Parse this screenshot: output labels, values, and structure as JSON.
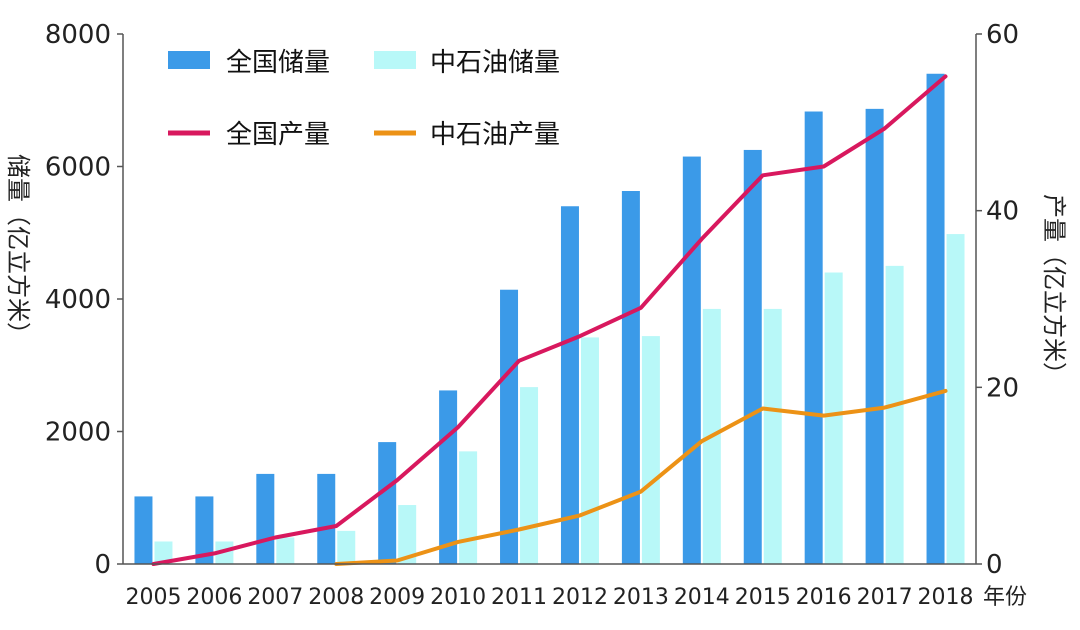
{
  "colors": {
    "national_reserve": "#3b9ae8",
    "cnpc_reserve": "#b8f8f8",
    "national_production": "#d8185e",
    "cnpc_production": "#ec9216",
    "axis": "#555555",
    "text": "#222222"
  },
  "chart_data": {
    "type": "bar",
    "categories": [
      "2005",
      "2006",
      "2007",
      "2008",
      "2009",
      "2010",
      "2011",
      "2012",
      "2013",
      "2014",
      "2015",
      "2016",
      "2017",
      "2018"
    ],
    "xlabel": "年份",
    "ylabel_left": "储量（亿立方米）",
    "ylabel_right": "产量（亿立方米）",
    "ylim_left": [
      0,
      8000
    ],
    "ylim_right": [
      0,
      60
    ],
    "yticks_left": [
      "0",
      "2000",
      "4000",
      "6000",
      "8000"
    ],
    "yticks_right": [
      "0",
      "20",
      "40",
      "60"
    ],
    "legend_position": "top-left",
    "grid": false,
    "series": [
      {
        "name": "全国储量",
        "type": "bar",
        "axis": "left",
        "values": [
          1020,
          1020,
          1360,
          1360,
          1840,
          2620,
          4140,
          5400,
          5630,
          6150,
          6250,
          6830,
          6870,
          7400
        ]
      },
      {
        "name": "中石油储量",
        "type": "bar",
        "axis": "left",
        "values": [
          340,
          340,
          400,
          500,
          890,
          1700,
          2670,
          3420,
          3440,
          3850,
          3850,
          4400,
          4500,
          4980
        ]
      },
      {
        "name": "全国产量",
        "type": "line",
        "axis": "right",
        "values": [
          0,
          1.2,
          3,
          4.3,
          9.5,
          15.5,
          23,
          25.8,
          29,
          36.8,
          44,
          45,
          49.3,
          55.2
        ]
      },
      {
        "name": "中石油产量",
        "type": "line",
        "axis": "right",
        "values": [
          null,
          null,
          null,
          0,
          0.4,
          2.5,
          3.9,
          5.5,
          8.2,
          13.9,
          17.6,
          16.8,
          17.7,
          19.6
        ]
      }
    ]
  }
}
